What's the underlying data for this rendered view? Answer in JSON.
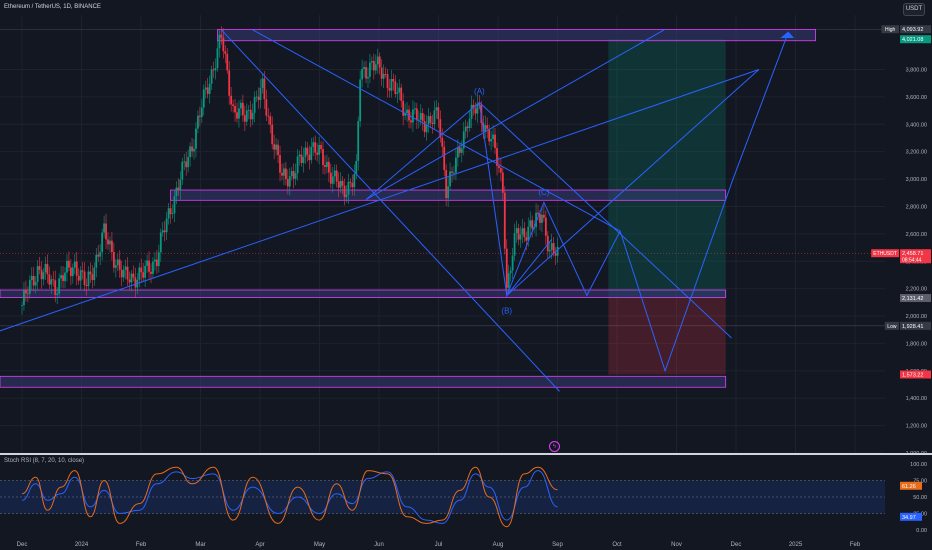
{
  "header": {
    "title": "Ethereum / TetherUS, 1D, BINANCE",
    "currency": "USDT"
  },
  "chart_data": {
    "type": "candlestick",
    "symbol": "ETHUSDT",
    "interval": "1D",
    "exchange": "BINANCE",
    "x_ticks": [
      "Dec",
      "2024",
      "Feb",
      "Mar",
      "Apr",
      "May",
      "Jun",
      "Jul",
      "Aug",
      "Sep",
      "Oct",
      "Nov",
      "Dec",
      "2025",
      "Feb"
    ],
    "price_ticks": [
      "3,800.00",
      "3,600.00",
      "3,400.00",
      "3,200.00",
      "3,000.00",
      "2,800.00",
      "2,600.00",
      "2,400.00",
      "2,200.00",
      "2,000.00",
      "1,800.00",
      "1,600.00",
      "1,400.00",
      "1,200.00",
      "1,000.00"
    ],
    "ylim": [
      1000,
      4200
    ],
    "price_labels": [
      {
        "prefix": "High",
        "value": "4,093.92",
        "color": "#363a45"
      },
      {
        "prefix": "",
        "value": "4,021.08",
        "color": "#089981"
      },
      {
        "prefix": "ETHUSDT",
        "value": "2,458.71",
        "sub": "08:54:44",
        "color": "#f23645"
      },
      {
        "prefix": "",
        "value": "2,131.42",
        "color": "#5d606b"
      },
      {
        "prefix": "Low",
        "value": "1,928.41",
        "color": "#363a45"
      },
      {
        "prefix": "",
        "value": "1,573.22",
        "color": "#f23645"
      }
    ],
    "wave_labels": [
      "(A)",
      "(B)",
      "(C)"
    ],
    "position": {
      "entry": 2131.42,
      "target": 4021.08,
      "stop": 1573.22
    },
    "close_series": [
      {
        "x": "2023-12-01",
        "y": 2080
      },
      {
        "x": "2023-12-09",
        "y": 2350
      },
      {
        "x": "2023-12-18",
        "y": 2220
      },
      {
        "x": "2023-12-28",
        "y": 2380
      },
      {
        "x": "2024-01-03",
        "y": 2210
      },
      {
        "x": "2024-01-12",
        "y": 2600
      },
      {
        "x": "2024-01-22",
        "y": 2280
      },
      {
        "x": "2024-02-01",
        "y": 2300
      },
      {
        "x": "2024-02-08",
        "y": 2430
      },
      {
        "x": "2024-02-15",
        "y": 2790
      },
      {
        "x": "2024-02-26",
        "y": 3250
      },
      {
        "x": "2024-03-04",
        "y": 3630
      },
      {
        "x": "2024-03-12",
        "y": 4030
      },
      {
        "x": "2024-03-18",
        "y": 3510
      },
      {
        "x": "2024-03-24",
        "y": 3450
      },
      {
        "x": "2024-04-02",
        "y": 3650
      },
      {
        "x": "2024-04-12",
        "y": 3000
      },
      {
        "x": "2024-04-18",
        "y": 3050
      },
      {
        "x": "2024-04-27",
        "y": 3250
      },
      {
        "x": "2024-05-05",
        "y": 3100
      },
      {
        "x": "2024-05-13",
        "y": 2900
      },
      {
        "x": "2024-05-20",
        "y": 3050
      },
      {
        "x": "2024-05-22",
        "y": 3750
      },
      {
        "x": "2024-05-28",
        "y": 3850
      },
      {
        "x": "2024-06-07",
        "y": 3700
      },
      {
        "x": "2024-06-14",
        "y": 3500
      },
      {
        "x": "2024-06-22",
        "y": 3420
      },
      {
        "x": "2024-07-01",
        "y": 3450
      },
      {
        "x": "2024-07-05",
        "y": 2950
      },
      {
        "x": "2024-07-10",
        "y": 3100
      },
      {
        "x": "2024-07-16",
        "y": 3450
      },
      {
        "x": "2024-07-21",
        "y": 3510
      },
      {
        "x": "2024-07-28",
        "y": 3300
      },
      {
        "x": "2024-08-03",
        "y": 2950
      },
      {
        "x": "2024-08-05",
        "y": 2200
      },
      {
        "x": "2024-08-10",
        "y": 2600
      },
      {
        "x": "2024-08-19",
        "y": 2650
      },
      {
        "x": "2024-08-23",
        "y": 2780
      },
      {
        "x": "2024-08-27",
        "y": 2450
      },
      {
        "x": "2024-08-31",
        "y": 2459
      }
    ],
    "indicator": {
      "title": "Stoch RSI (8, 7, 20, 10, close)",
      "ticks": [
        "100.00",
        "75.00",
        "50.00",
        "25.00",
        "0.00"
      ],
      "k_label": "61.26",
      "d_label": "34.97",
      "k_color": "#e76c1b",
      "d_color": "#2962ff",
      "k": [
        {
          "x": "2023-12-01",
          "y": 55
        },
        {
          "x": "2023-12-08",
          "y": 80
        },
        {
          "x": "2023-12-14",
          "y": 30
        },
        {
          "x": "2023-12-21",
          "y": 65
        },
        {
          "x": "2023-12-28",
          "y": 90
        },
        {
          "x": "2024-01-05",
          "y": 20
        },
        {
          "x": "2024-01-12",
          "y": 75
        },
        {
          "x": "2024-01-20",
          "y": 10
        },
        {
          "x": "2024-01-30",
          "y": 40
        },
        {
          "x": "2024-02-08",
          "y": 85
        },
        {
          "x": "2024-02-18",
          "y": 95
        },
        {
          "x": "2024-02-26",
          "y": 70
        },
        {
          "x": "2024-03-08",
          "y": 95
        },
        {
          "x": "2024-03-18",
          "y": 15
        },
        {
          "x": "2024-03-28",
          "y": 80
        },
        {
          "x": "2024-04-10",
          "y": 10
        },
        {
          "x": "2024-04-20",
          "y": 65
        },
        {
          "x": "2024-05-01",
          "y": 15
        },
        {
          "x": "2024-05-10",
          "y": 70
        },
        {
          "x": "2024-05-18",
          "y": 30
        },
        {
          "x": "2024-05-26",
          "y": 90
        },
        {
          "x": "2024-06-05",
          "y": 85
        },
        {
          "x": "2024-06-15",
          "y": 20
        },
        {
          "x": "2024-06-25",
          "y": 10
        },
        {
          "x": "2024-07-03",
          "y": 15
        },
        {
          "x": "2024-07-12",
          "y": 60
        },
        {
          "x": "2024-07-20",
          "y": 95
        },
        {
          "x": "2024-07-27",
          "y": 50
        },
        {
          "x": "2024-08-05",
          "y": 5
        },
        {
          "x": "2024-08-14",
          "y": 85
        },
        {
          "x": "2024-08-21",
          "y": 95
        },
        {
          "x": "2024-08-31",
          "y": 61
        }
      ],
      "d": [
        {
          "x": "2023-12-01",
          "y": 45
        },
        {
          "x": "2023-12-08",
          "y": 70
        },
        {
          "x": "2023-12-14",
          "y": 45
        },
        {
          "x": "2023-12-21",
          "y": 55
        },
        {
          "x": "2023-12-28",
          "y": 80
        },
        {
          "x": "2024-01-05",
          "y": 35
        },
        {
          "x": "2024-01-12",
          "y": 60
        },
        {
          "x": "2024-01-20",
          "y": 25
        },
        {
          "x": "2024-01-30",
          "y": 30
        },
        {
          "x": "2024-02-08",
          "y": 70
        },
        {
          "x": "2024-02-18",
          "y": 88
        },
        {
          "x": "2024-02-26",
          "y": 78
        },
        {
          "x": "2024-03-08",
          "y": 85
        },
        {
          "x": "2024-03-18",
          "y": 30
        },
        {
          "x": "2024-03-28",
          "y": 65
        },
        {
          "x": "2024-04-10",
          "y": 25
        },
        {
          "x": "2024-04-20",
          "y": 50
        },
        {
          "x": "2024-05-01",
          "y": 25
        },
        {
          "x": "2024-05-10",
          "y": 55
        },
        {
          "x": "2024-05-18",
          "y": 40
        },
        {
          "x": "2024-05-26",
          "y": 78
        },
        {
          "x": "2024-06-05",
          "y": 88
        },
        {
          "x": "2024-06-15",
          "y": 35
        },
        {
          "x": "2024-06-25",
          "y": 15
        },
        {
          "x": "2024-07-03",
          "y": 10
        },
        {
          "x": "2024-07-12",
          "y": 45
        },
        {
          "x": "2024-07-20",
          "y": 85
        },
        {
          "x": "2024-07-27",
          "y": 65
        },
        {
          "x": "2024-08-05",
          "y": 15
        },
        {
          "x": "2024-08-14",
          "y": 65
        },
        {
          "x": "2024-08-21",
          "y": 90
        },
        {
          "x": "2024-08-31",
          "y": 35
        }
      ]
    }
  },
  "colors": {
    "background": "#131722",
    "up": "#089981",
    "down": "#f23645",
    "drawing": "#2962ff",
    "zone_border": "#e040fb",
    "zone_fill": "#363a75"
  }
}
